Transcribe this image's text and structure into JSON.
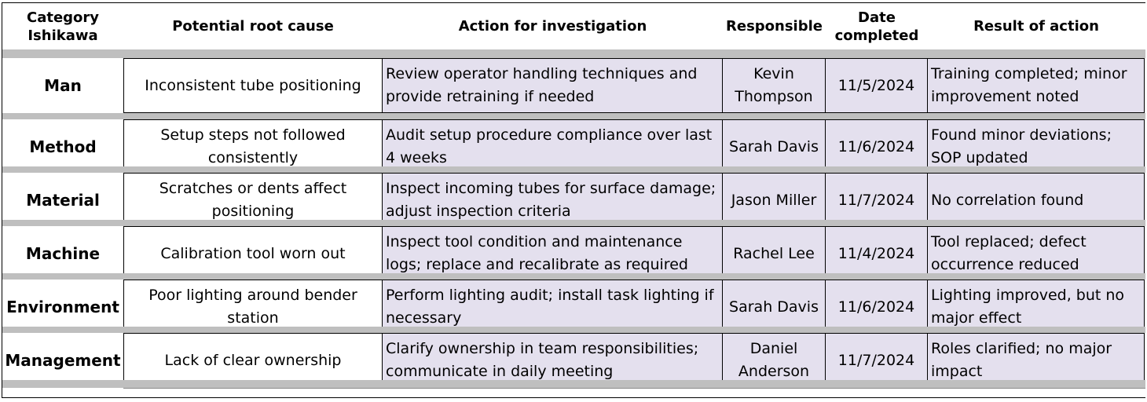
{
  "headers": {
    "category": "Category\nIshikawa",
    "cause": "Potential root cause",
    "action": "Action for investigation",
    "responsible": "Responsible",
    "date": "Date\ncompleted",
    "result": "Result of action"
  },
  "rows": [
    {
      "category": "Man",
      "cause": "Inconsistent tube positioning",
      "action": "Review operator handling techniques and provide retraining if needed",
      "responsible": "Kevin Thompson",
      "date": "11/5/2024",
      "result": "Training completed; minor improvement noted"
    },
    {
      "category": "Method",
      "cause": "Setup steps not followed consistently",
      "action": "Audit setup procedure compliance over last 4 weeks",
      "responsible": "Sarah Davis",
      "date": "11/6/2024",
      "result": "Found minor deviations; SOP updated"
    },
    {
      "category": "Material",
      "cause": "Scratches or dents affect positioning",
      "action": "Inspect incoming tubes for surface damage; adjust inspection criteria",
      "responsible": "Jason Miller",
      "date": "11/7/2024",
      "result": "No correlation found"
    },
    {
      "category": "Machine",
      "cause": "Calibration tool worn out",
      "action": "Inspect tool condition and maintenance logs; replace and recalibrate as required",
      "responsible": "Rachel Lee",
      "date": "11/4/2024",
      "result": "Tool replaced; defect occurrence reduced"
    },
    {
      "category": "Environment",
      "cause": "Poor lighting around bender station",
      "action": "Perform lighting audit; install task lighting if necessary",
      "responsible": "Sarah Davis",
      "date": "11/6/2024",
      "result": "Lighting improved, but no major effect"
    },
    {
      "category": "Management",
      "cause": "Lack of clear ownership",
      "action": "Clarify ownership in team responsibilities; communicate in daily meeting",
      "responsible": "Daniel Anderson",
      "date": "11/7/2024",
      "result": "Roles clarified; no major impact"
    }
  ],
  "colors": {
    "band": "#bfbfbf",
    "fill": "#e4e0ee"
  }
}
